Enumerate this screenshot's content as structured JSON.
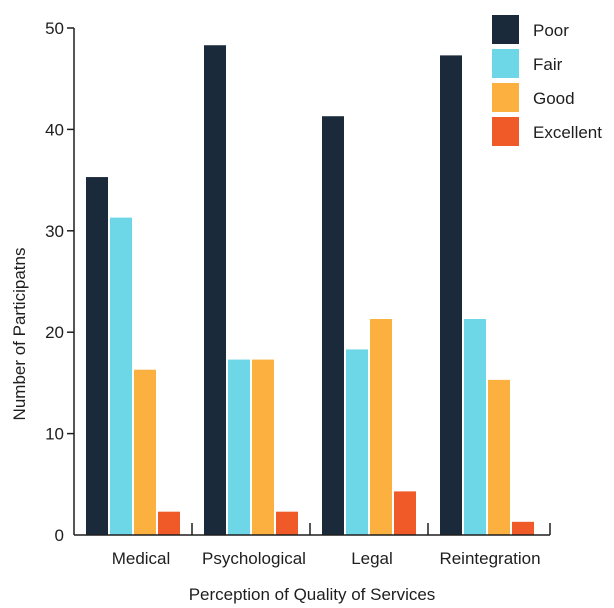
{
  "chart_data": {
    "type": "bar",
    "title": "",
    "xlabel": "Perception of Quality of Services",
    "ylabel": "Number of Participatns",
    "categories": [
      "Medical",
      "Psychological",
      "Legal",
      "Reintegration"
    ],
    "ylim": [
      0,
      50
    ],
    "yticks": [
      0,
      10,
      20,
      30,
      40,
      50
    ],
    "grid": false,
    "legend_position": "top-right",
    "series": [
      {
        "name": "Poor",
        "color": "#1b2a3b",
        "values": [
          35.3,
          48.3,
          41.3,
          47.3
        ]
      },
      {
        "name": "Fair",
        "color": "#6dd7e8",
        "values": [
          31.3,
          17.3,
          18.3,
          21.3
        ]
      },
      {
        "name": "Good",
        "color": "#fbb040",
        "values": [
          16.3,
          17.3,
          21.3,
          15.3
        ]
      },
      {
        "name": "Excellent",
        "color": "#ef5a28",
        "values": [
          2.3,
          2.3,
          4.3,
          1.3
        ]
      }
    ]
  }
}
